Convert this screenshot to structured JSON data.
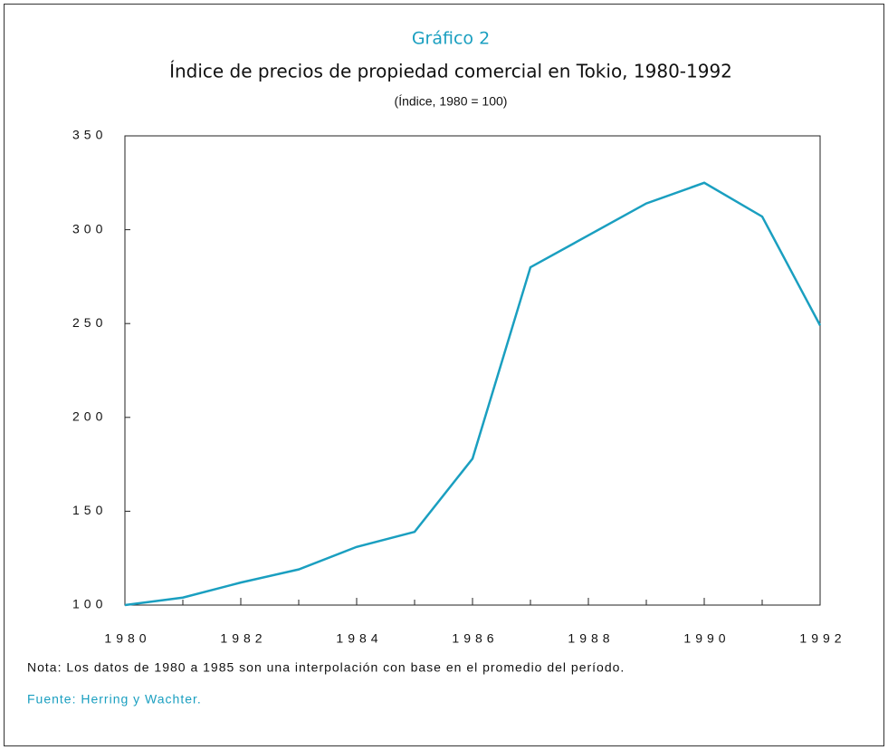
{
  "chart_data": {
    "type": "line",
    "label": "Gráfico 2",
    "title": "Índice de precios de propiedad comercial en Tokio, 1980-1992",
    "subtitle": "(Índice, 1980  =  100)",
    "x": [
      1980,
      1981,
      1982,
      1983,
      1984,
      1985,
      1986,
      1987,
      1988,
      1989,
      1990,
      1991,
      1992
    ],
    "series": [
      {
        "name": "Índice",
        "color": "#1a9fc0",
        "values": [
          100,
          104,
          112,
          119,
          131,
          139,
          178,
          280,
          297,
          314,
          325,
          307,
          249
        ]
      }
    ],
    "xlim": [
      1980,
      1992
    ],
    "xticks": [
      1980,
      1982,
      1984,
      1986,
      1988,
      1990,
      1992
    ],
    "ylim": [
      100,
      350
    ],
    "yticks": [
      100,
      150,
      200,
      250,
      300,
      350
    ],
    "note": "Nota: Los datos de 1980 a 1985 son una interpolación con base en el promedio del período.",
    "source": "Fuente: Herring y Wachter."
  }
}
